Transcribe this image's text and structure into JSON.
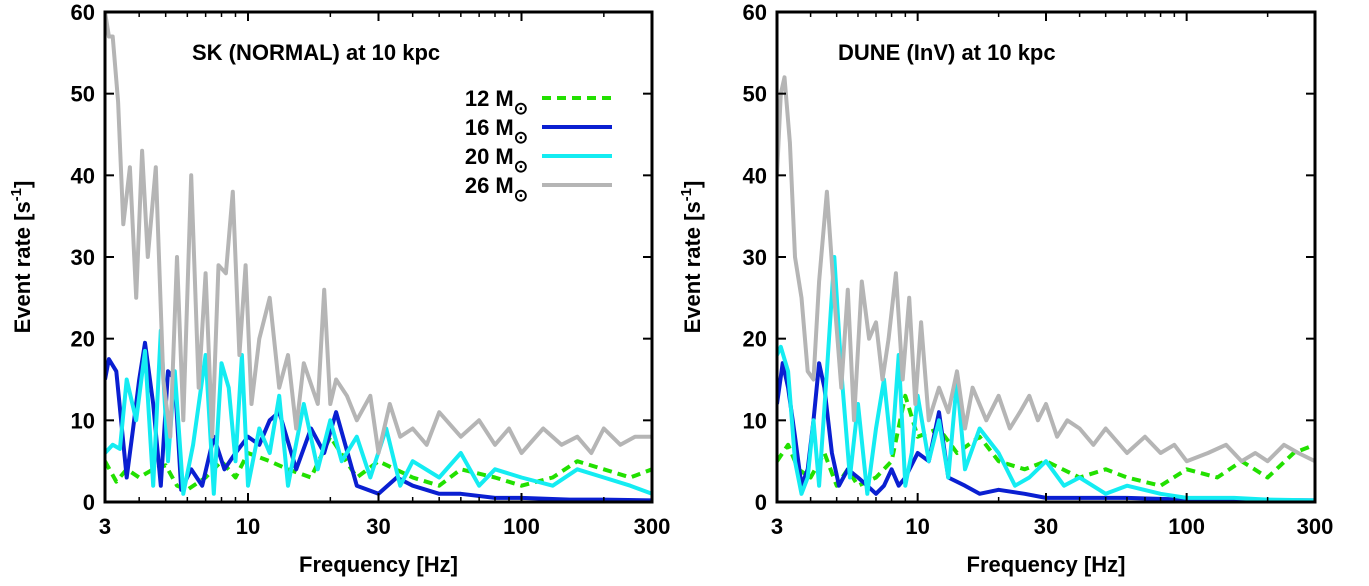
{
  "chart_data": [
    {
      "type": "line",
      "title": "SK (NORMAL) at 10 kpc",
      "xlabel": "Frequency [Hz]",
      "ylabel": "Event rate [s-1]",
      "ylabel_base": "Event rate [s",
      "ylabel_sup": "-1",
      "ylabel_tail": "]",
      "xscale": "log",
      "xlim": [
        3,
        300
      ],
      "ylim": [
        0,
        60
      ],
      "xticks": [
        3,
        10,
        30,
        100,
        300
      ],
      "xtick_labels": [
        "3",
        "10",
        "30",
        "100",
        "300"
      ],
      "yticks": [
        0,
        10,
        20,
        30,
        40,
        50,
        60
      ],
      "ytick_labels": [
        "0",
        "10",
        "20",
        "30",
        "40",
        "50",
        "60"
      ],
      "legend_position": "top-right",
      "series": [
        {
          "name": "12 M☉",
          "mass": "12 M",
          "color": "#22e000",
          "dash": true,
          "x": [
            3,
            3.3,
            3.6,
            4,
            4.5,
            5,
            5.5,
            6,
            7,
            8,
            9,
            10,
            12,
            14,
            17,
            20,
            25,
            30,
            40,
            50,
            60,
            80,
            100,
            130,
            160,
            200,
            250,
            300
          ],
          "y": [
            5,
            2.5,
            4,
            3,
            4,
            4.5,
            2,
            1.5,
            3,
            5,
            3,
            6,
            5,
            4,
            3,
            8,
            3,
            5,
            3,
            2,
            4,
            3,
            2,
            3,
            5,
            4,
            3,
            4
          ]
        },
        {
          "name": "16 M☉",
          "mass": "16 M",
          "color": "#0a1fd1",
          "dash": false,
          "x": [
            3,
            3.1,
            3.3,
            3.6,
            3.8,
            4,
            4.2,
            4.5,
            4.8,
            5.1,
            5.4,
            5.7,
            6.2,
            6.8,
            7.5,
            8.2,
            9,
            10,
            11,
            12,
            13,
            15,
            17,
            19,
            21,
            25,
            30,
            35,
            40,
            50,
            60,
            80,
            100,
            150,
            200,
            300
          ],
          "y": [
            15,
            17.5,
            16,
            3,
            9,
            15,
            19.5,
            12,
            2,
            16,
            15,
            1.5,
            4,
            2,
            8,
            4,
            6,
            8,
            7,
            10,
            11,
            4,
            9,
            6,
            11,
            2,
            1,
            3,
            2,
            1,
            1,
            0.5,
            0.5,
            0.3,
            0.3,
            0.2
          ]
        },
        {
          "name": "20 M☉",
          "mass": "20 M",
          "color": "#14ecf2",
          "dash": false,
          "x": [
            3,
            3.2,
            3.4,
            3.6,
            3.9,
            4.2,
            4.5,
            4.8,
            5.1,
            5.4,
            5.8,
            6.3,
            7,
            7.5,
            8,
            8.5,
            9,
            9.5,
            10,
            11,
            12,
            13,
            14,
            16,
            18,
            20,
            22,
            25,
            28,
            32,
            36,
            40,
            50,
            60,
            70,
            80,
            100,
            130,
            160,
            200,
            250,
            300
          ],
          "y": [
            6,
            7,
            6.5,
            15,
            10,
            18.5,
            2,
            21,
            5,
            16,
            1,
            7,
            18,
            1,
            17,
            14,
            5,
            18,
            2,
            9,
            6,
            13,
            2,
            12,
            4,
            10,
            5,
            8,
            3,
            9,
            2,
            5,
            3,
            6,
            2,
            4,
            3,
            2,
            4,
            3,
            2,
            1
          ]
        },
        {
          "name": "26 M☉",
          "mass": "26 M",
          "color": "#b5b5b5",
          "dash": false,
          "x": [
            3,
            3.1,
            3.2,
            3.35,
            3.5,
            3.7,
            3.9,
            4.1,
            4.3,
            4.6,
            4.9,
            5.2,
            5.5,
            5.8,
            6.2,
            6.6,
            7,
            7.4,
            7.8,
            8.3,
            8.8,
            9.3,
            9.8,
            10.3,
            11,
            12,
            13,
            14,
            15,
            16,
            18,
            19,
            20,
            21,
            23,
            25,
            28,
            30,
            33,
            36,
            40,
            45,
            50,
            60,
            70,
            80,
            90,
            100,
            120,
            140,
            160,
            180,
            200,
            230,
            260,
            300
          ],
          "y": [
            60,
            57,
            57,
            49,
            34,
            41,
            25,
            43,
            30,
            41,
            15,
            8,
            30,
            10,
            40,
            14,
            28,
            8,
            29,
            28,
            38,
            18,
            29,
            12,
            20,
            25,
            14,
            18,
            9,
            17,
            12,
            26,
            12,
            15,
            13,
            10,
            13,
            6,
            12,
            8,
            9,
            7,
            11,
            8,
            10,
            7,
            9,
            6,
            9,
            7,
            8,
            6,
            9,
            7,
            8,
            8
          ]
        }
      ]
    },
    {
      "type": "line",
      "title": "DUNE (InV) at 10 kpc",
      "xlabel": "Frequency [Hz]",
      "ylabel": "Event rate [s-1]",
      "ylabel_base": "Event rate [s",
      "ylabel_sup": "-1",
      "ylabel_tail": "]",
      "xscale": "log",
      "xlim": [
        3,
        300
      ],
      "ylim": [
        0,
        60
      ],
      "xticks": [
        3,
        10,
        30,
        100,
        300
      ],
      "xtick_labels": [
        "3",
        "10",
        "30",
        "100",
        "300"
      ],
      "yticks": [
        0,
        10,
        20,
        30,
        40,
        50,
        60
      ],
      "ytick_labels": [
        "0",
        "10",
        "20",
        "30",
        "40",
        "50",
        "60"
      ],
      "series": [
        {
          "name": "12 M☉",
          "mass": "12 M",
          "color": "#22e000",
          "dash": true,
          "x": [
            3,
            3.3,
            3.6,
            4,
            4.5,
            5,
            5.5,
            6,
            7,
            8,
            9,
            10,
            12,
            14,
            17,
            20,
            25,
            30,
            40,
            50,
            60,
            80,
            100,
            130,
            160,
            200,
            250,
            300
          ],
          "y": [
            5,
            7,
            4,
            3,
            6,
            2,
            4,
            2,
            3,
            5,
            13,
            8,
            9,
            6,
            8,
            5,
            4,
            5,
            3,
            4,
            3,
            2,
            4,
            3,
            5,
            3,
            6,
            7
          ]
        },
        {
          "name": "16 M☉",
          "mass": "16 M",
          "color": "#0a1fd1",
          "dash": false,
          "x": [
            3,
            3.15,
            3.3,
            3.5,
            3.7,
            3.9,
            4.1,
            4.3,
            4.5,
            4.8,
            5.1,
            5.5,
            6,
            6.5,
            7,
            7.5,
            8,
            8.5,
            9,
            10,
            11,
            12,
            13,
            15,
            17,
            20,
            25,
            30,
            40,
            60,
            100,
            300
          ],
          "y": [
            12,
            17,
            14,
            8,
            2,
            4,
            10,
            17,
            14,
            6,
            2,
            4,
            3,
            2,
            1,
            2,
            4,
            2,
            3,
            6,
            5,
            11,
            3,
            2,
            1,
            1.5,
            1,
            0.5,
            0.5,
            0.5,
            0.3,
            0.2
          ]
        },
        {
          "name": "20 M☉",
          "mass": "20 M",
          "color": "#14ecf2",
          "dash": false,
          "x": [
            3,
            3.1,
            3.3,
            3.5,
            3.7,
            3.9,
            4.1,
            4.3,
            4.6,
            4.9,
            5.2,
            5.6,
            6,
            6.5,
            7,
            7.5,
            8,
            8.5,
            9,
            9.5,
            10,
            11,
            12,
            13,
            14,
            15,
            17,
            20,
            23,
            26,
            30,
            35,
            40,
            50,
            60,
            80,
            100,
            150,
            200,
            300
          ],
          "y": [
            18,
            19,
            16,
            5,
            1,
            3,
            10,
            2,
            16,
            30,
            16,
            3,
            12,
            1,
            9,
            15,
            6,
            18,
            2,
            6,
            13,
            5,
            10,
            3,
            15,
            4,
            9,
            6,
            2,
            3,
            5,
            2,
            3,
            1,
            2,
            1,
            0.5,
            0.5,
            0.3,
            0.2
          ]
        },
        {
          "name": "26 M☉",
          "mass": "26 M",
          "color": "#b5b5b5",
          "dash": false,
          "x": [
            3,
            3.1,
            3.2,
            3.35,
            3.5,
            3.7,
            3.9,
            4.1,
            4.3,
            4.6,
            4.9,
            5.2,
            5.5,
            5.8,
            6.2,
            6.6,
            7,
            7.4,
            7.8,
            8.3,
            8.8,
            9.3,
            9.8,
            10.3,
            11,
            12,
            13,
            14,
            15,
            16,
            18,
            20,
            22,
            24,
            26,
            28,
            30,
            33,
            36,
            40,
            45,
            50,
            60,
            70,
            80,
            90,
            100,
            120,
            140,
            160,
            180,
            200,
            230,
            260,
            300
          ],
          "y": [
            40,
            50,
            52,
            44,
            30,
            25,
            16,
            15,
            27,
            38,
            25,
            14,
            26,
            10,
            27,
            20,
            22,
            15,
            20,
            28,
            15,
            25,
            12,
            22,
            10,
            14,
            11,
            16,
            9,
            14,
            10,
            13,
            9,
            11,
            13,
            10,
            12,
            8,
            10,
            9,
            7,
            9,
            6,
            8,
            6,
            7,
            5,
            6,
            7,
            5,
            6,
            5,
            7,
            6,
            5
          ]
        }
      ]
    }
  ]
}
